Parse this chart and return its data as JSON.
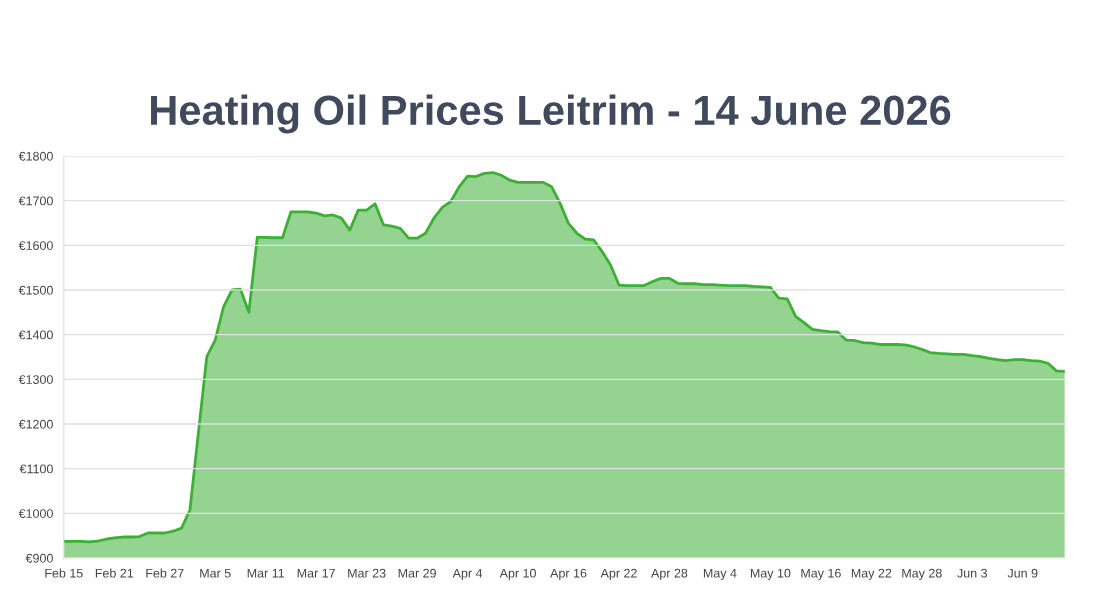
{
  "chart_data": {
    "type": "area",
    "title": "Heating Oil Prices Leitrim - 14 June 2026",
    "x": [
      "2026-02-15",
      "2026-02-16",
      "2026-02-17",
      "2026-02-18",
      "2026-02-19",
      "2026-02-20",
      "2026-02-21",
      "2026-02-22",
      "2026-02-23",
      "2026-02-24",
      "2026-02-25",
      "2026-02-26",
      "2026-02-27",
      "2026-02-28",
      "2026-03-01",
      "2026-03-02",
      "2026-03-03",
      "2026-03-04",
      "2026-03-05",
      "2026-03-06",
      "2026-03-07",
      "2026-03-08",
      "2026-03-09",
      "2026-03-10",
      "2026-03-11",
      "2026-03-12",
      "2026-03-13",
      "2026-03-14",
      "2026-03-15",
      "2026-03-16",
      "2026-03-17",
      "2026-03-18",
      "2026-03-19",
      "2026-03-20",
      "2026-03-21",
      "2026-03-22",
      "2026-03-23",
      "2026-03-24",
      "2026-03-25",
      "2026-03-26",
      "2026-03-27",
      "2026-03-28",
      "2026-03-29",
      "2026-03-30",
      "2026-03-31",
      "2026-04-01",
      "2026-04-02",
      "2026-04-03",
      "2026-04-04",
      "2026-04-05",
      "2026-04-06",
      "2026-04-07",
      "2026-04-08",
      "2026-04-09",
      "2026-04-10",
      "2026-04-11",
      "2026-04-12",
      "2026-04-13",
      "2026-04-14",
      "2026-04-15",
      "2026-04-16",
      "2026-04-17",
      "2026-04-18",
      "2026-04-19",
      "2026-04-20",
      "2026-04-21",
      "2026-04-22",
      "2026-04-23",
      "2026-04-24",
      "2026-04-25",
      "2026-04-26",
      "2026-04-27",
      "2026-04-28",
      "2026-04-29",
      "2026-04-30",
      "2026-05-01",
      "2026-05-02",
      "2026-05-03",
      "2026-05-04",
      "2026-05-05",
      "2026-05-06",
      "2026-05-07",
      "2026-05-08",
      "2026-05-09",
      "2026-05-10",
      "2026-05-11",
      "2026-05-12",
      "2026-05-13",
      "2026-05-14",
      "2026-05-15",
      "2026-05-16",
      "2026-05-17",
      "2026-05-18",
      "2026-05-19",
      "2026-05-20",
      "2026-05-21",
      "2026-05-22",
      "2026-05-23",
      "2026-05-24",
      "2026-05-25",
      "2026-05-26",
      "2026-05-27",
      "2026-05-28",
      "2026-05-29",
      "2026-05-30",
      "2026-05-31",
      "2026-06-01",
      "2026-06-02",
      "2026-06-03",
      "2026-06-04",
      "2026-06-05",
      "2026-06-06",
      "2026-06-07",
      "2026-06-08",
      "2026-06-09",
      "2026-06-10",
      "2026-06-11",
      "2026-06-12",
      "2026-06-13",
      "2026-06-14"
    ],
    "series": [
      {
        "color": "#3cb034",
        "values": [
          937,
          937,
          937,
          936,
          938,
          942,
          945,
          947,
          947,
          948,
          956,
          956,
          956,
          960,
          967,
          1008,
          1180,
          1351,
          1388,
          1463,
          1500,
          1502,
          1450,
          1618,
          1618,
          1617,
          1617,
          1675,
          1675,
          1675,
          1672,
          1666,
          1668,
          1661,
          1634,
          1679,
          1679,
          1693,
          1646,
          1643,
          1638,
          1616,
          1616,
          1627,
          1661,
          1685,
          1698,
          1731,
          1755,
          1754,
          1761,
          1763,
          1757,
          1746,
          1741,
          1741,
          1741,
          1741,
          1731,
          1694,
          1649,
          1627,
          1614,
          1612,
          1586,
          1556,
          1511,
          1510,
          1510,
          1510,
          1519,
          1526,
          1526,
          1515,
          1514,
          1514,
          1512,
          1512,
          1511,
          1510,
          1510,
          1510,
          1508,
          1507,
          1506,
          1482,
          1480,
          1441,
          1427,
          1412,
          1409,
          1407,
          1406,
          1388,
          1387,
          1382,
          1381,
          1378,
          1378,
          1378,
          1377,
          1373,
          1367,
          1360,
          1358,
          1357,
          1356,
          1356,
          1353,
          1351,
          1347,
          1344,
          1342,
          1344,
          1344,
          1342,
          1341,
          1336,
          1319,
          1318
        ]
      }
    ],
    "xlim": [
      "2026-02-15",
      "2026-06-14"
    ],
    "xticks": [
      {
        "value": "2026-02-15",
        "label": "Feb 15"
      },
      {
        "value": "2026-02-21",
        "label": "Feb 21"
      },
      {
        "value": "2026-02-27",
        "label": "Feb 27"
      },
      {
        "value": "2026-03-05",
        "label": "Mar 5"
      },
      {
        "value": "2026-03-11",
        "label": "Mar 11"
      },
      {
        "value": "2026-03-17",
        "label": "Mar 17"
      },
      {
        "value": "2026-03-23",
        "label": "Mar 23"
      },
      {
        "value": "2026-03-29",
        "label": "Mar 29"
      },
      {
        "value": "2026-04-04",
        "label": "Apr 4"
      },
      {
        "value": "2026-04-10",
        "label": "Apr 10"
      },
      {
        "value": "2026-04-16",
        "label": "Apr 16"
      },
      {
        "value": "2026-04-22",
        "label": "Apr 22"
      },
      {
        "value": "2026-04-28",
        "label": "Apr 28"
      },
      {
        "value": "2026-05-04",
        "label": "May 4"
      },
      {
        "value": "2026-05-10",
        "label": "May 10"
      },
      {
        "value": "2026-05-16",
        "label": "May 16"
      },
      {
        "value": "2026-05-22",
        "label": "May 22"
      },
      {
        "value": "2026-05-28",
        "label": "May 28"
      },
      {
        "value": "2026-06-03",
        "label": "Jun 3"
      },
      {
        "value": "2026-06-09",
        "label": "Jun 9"
      }
    ],
    "ylim": [
      900,
      1800
    ],
    "yticks": [
      {
        "value": 900,
        "label": "€900"
      },
      {
        "value": 1000,
        "label": "€1000"
      },
      {
        "value": 1100,
        "label": "€1100"
      },
      {
        "value": 1200,
        "label": "€1200"
      },
      {
        "value": 1300,
        "label": "€1300"
      },
      {
        "value": 1400,
        "label": "€1400"
      },
      {
        "value": 1500,
        "label": "€1500"
      },
      {
        "value": 1600,
        "label": "€1600"
      },
      {
        "value": 1700,
        "label": "€1700"
      },
      {
        "value": 1800,
        "label": "€1800"
      }
    ],
    "grid": "y",
    "legend": false
  }
}
